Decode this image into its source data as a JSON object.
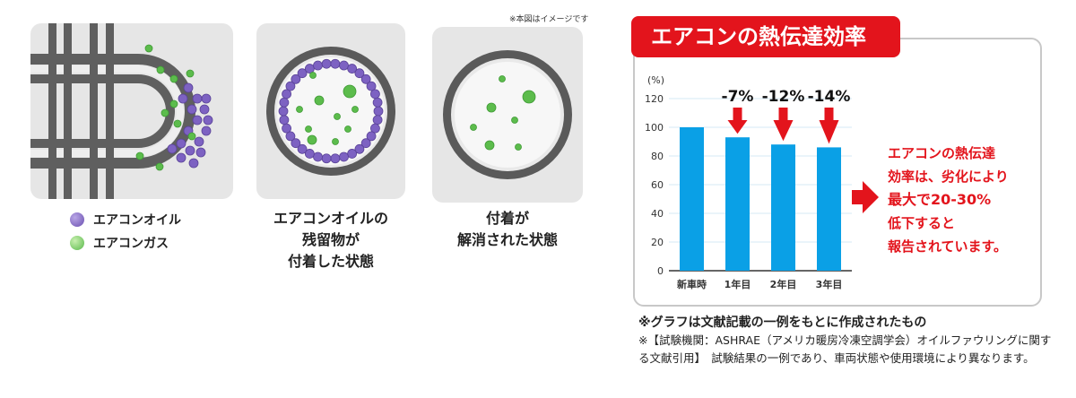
{
  "legend": {
    "oil_label": "エアコンオイル",
    "gas_label": "エアコンガス"
  },
  "panels": {
    "residue_caption_lines": [
      "エアコンオイルの",
      "残留物が",
      "付着した状態"
    ],
    "clean_caption_lines": [
      "付着が",
      "解消された状態"
    ],
    "image_note": "※本図はイメージです"
  },
  "chart_title": "エアコンの熱伝達効率",
  "chart_data": {
    "type": "bar",
    "unit_label": "(%)",
    "categories": [
      "新車時",
      "1年目",
      "2年目",
      "3年目"
    ],
    "values": [
      100,
      93,
      88,
      86
    ],
    "annotations": [
      "",
      "-7%",
      "-12%",
      "-14%"
    ],
    "ylim": [
      0,
      120
    ],
    "yticks": [
      0,
      20,
      40,
      60,
      80,
      100,
      120
    ],
    "grid": true,
    "colors": {
      "bar": "#0aa0e6",
      "arrow": "#e3141c",
      "grid": "#d6e8f5"
    }
  },
  "callout_lines": [
    "エアコンの熱伝達",
    "効率は、劣化により",
    "最大で20-30%",
    "低下すると",
    "報告されています。"
  ],
  "footnotes": {
    "line1": "※グラフは文献記載の一例をもとに作成されたもの",
    "line2": "※【試験機関：ASHRAE（アメリカ暖房冷凍空調学会）オイルファウリングに関する文献引用】　試験結果の一例であり、車両状態や使用環境により異なります。"
  },
  "icons": [
    "pipe-illustration",
    "oil-residue-pipe-icon",
    "clean-pipe-icon",
    "red-down-arrow-icon",
    "red-right-arrow-icon"
  ]
}
